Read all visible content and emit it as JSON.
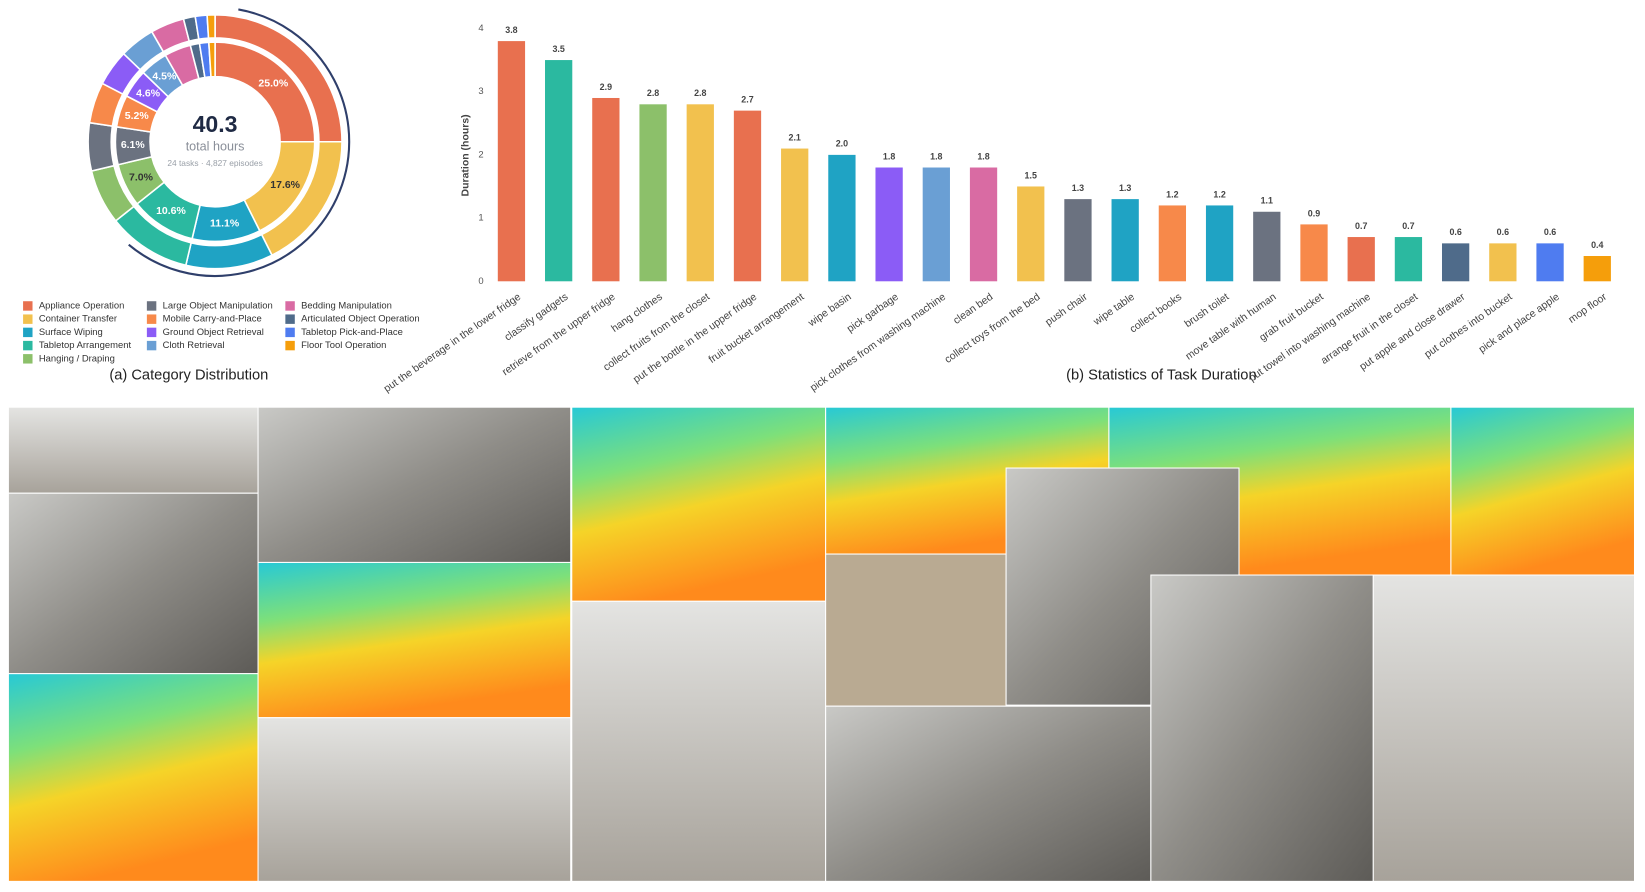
{
  "chart_data": [
    {
      "type": "donut",
      "title": "(a) Category Distribution",
      "center_value": 40.3,
      "center_label": "total hours",
      "center_note": "24 tasks · 4,827 episodes",
      "categories": [
        "Appliance Operation",
        "Container Transfer",
        "Surface Wiping",
        "Tabletop Arrangement",
        "Hanging / Draping",
        "Large Object Manipulation",
        "Mobile Carry-and-Place",
        "Ground Object Retrieval",
        "Cloth Retrieval",
        "Bedding Manipulation",
        "Articulated Object Operation",
        "Tabletop Pick-and-Place",
        "Floor Tool Operation"
      ],
      "values": [
        25,
        17.6,
        11.1,
        10.6,
        7,
        6.1,
        5.2,
        4.6,
        4.5,
        4.3,
        1.5,
        1.5,
        1
      ],
      "value_labels": [
        "25.0%",
        "17.6%",
        "11.1%",
        "10.6%",
        "7.0%",
        "6.1%",
        "5.2%",
        "4.6%",
        "4.5%",
        null,
        null,
        null,
        null
      ],
      "colors": [
        "#e8704f",
        "#f2c14e",
        "#1fa3c4",
        "#2bb9a0",
        "#8cc06a",
        "#6b7280",
        "#f7894a",
        "#8b5cf6",
        "#6a9fd4",
        "#d96ba3",
        "#4f6b8a",
        "#4f7cf0",
        "#f59e0b"
      ]
    },
    {
      "type": "bar",
      "title": "(b) Statistics of Task Duration",
      "y_label": "Duration (hours)",
      "categories": [
        "put the beverage in the lower fridge",
        "classify gadgets",
        "retrieve from the upper fridge",
        "hang clothes",
        "collect fruits from the closet",
        "put the bottle in the upper fridge",
        "fruit bucket arrangement",
        "wipe basin",
        "pick garbage",
        "pick clothes from washing machine",
        "clean bed",
        "collect toys from the bed",
        "push chair",
        "wipe table",
        "collect books",
        "brush toilet",
        "move table with human",
        "grab fruit bucket",
        "put towel into washing machine",
        "arrange fruit in the closet",
        "put apple and close drawer",
        "put clothes into bucket",
        "pick and place apple",
        "mop floor"
      ],
      "values": [
        3.8,
        3.5,
        2.9,
        2.8,
        2.8,
        2.7,
        2.1,
        2,
        1.8,
        1.8,
        1.8,
        1.5,
        1.3,
        1.3,
        1.2,
        1.2,
        1.1,
        0.9,
        0.7,
        0.7,
        0.6,
        0.6,
        0.6,
        0.4
      ],
      "value_labels": [
        "3.8",
        "3.5",
        "2.9",
        "2.8",
        "2.8",
        "2.7",
        "2.1",
        "2.0",
        "1.8",
        "1.8",
        "1.8",
        "1.5",
        "1.3",
        "1.3",
        "1.2",
        "1.2",
        "1.1",
        "0.9",
        "0.7",
        "0.7",
        "0.6",
        "0.6",
        "0.6",
        "0.4"
      ],
      "colors": [
        "#e8704f",
        "#2bb9a0",
        "#e8704f",
        "#8cc06a",
        "#f2c14e",
        "#e8704f",
        "#f2c14e",
        "#1fa3c4",
        "#8b5cf6",
        "#6a9fd4",
        "#d96ba3",
        "#f2c14e",
        "#6b7280",
        "#1fa3c4",
        "#f7894a",
        "#1fa3c4",
        "#6b7280",
        "#f7894a",
        "#e8704f",
        "#2bb9a0",
        "#4f6b8a",
        "#f2c14e",
        "#4f7cf0",
        "#f59e0b"
      ],
      "ylim": [
        0,
        4
      ],
      "yticks": [
        0,
        1,
        2,
        3,
        4
      ]
    }
  ]
}
